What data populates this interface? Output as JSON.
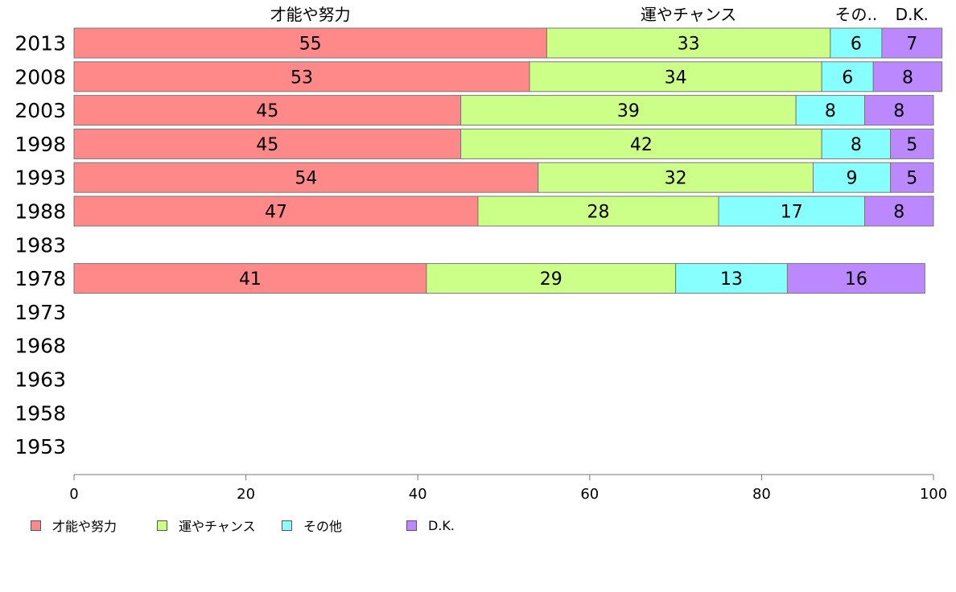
{
  "chart_data": {
    "type": "bar",
    "orientation": "horizontal",
    "stacked": true,
    "categories": [
      "2013",
      "2008",
      "2003",
      "1998",
      "1993",
      "1988",
      "1983",
      "1978",
      "1973",
      "1968",
      "1963",
      "1958",
      "1953"
    ],
    "series": [
      {
        "name": "才能や努力",
        "header": "才能や努力",
        "color": "#FF8888",
        "values": [
          55,
          53,
          45,
          45,
          54,
          47,
          null,
          41,
          null,
          null,
          null,
          null,
          null
        ]
      },
      {
        "name": "運やチャンス",
        "header": "運やチャンス",
        "color": "#CCFF88",
        "values": [
          33,
          34,
          39,
          42,
          32,
          28,
          null,
          29,
          null,
          null,
          null,
          null,
          null
        ]
      },
      {
        "name": "その他",
        "header": "その..",
        "color": "#88FFFF",
        "values": [
          6,
          6,
          8,
          8,
          9,
          17,
          null,
          13,
          null,
          null,
          null,
          null,
          null
        ]
      },
      {
        "name": "D.K.",
        "header": "D.K.",
        "color": "#BB88FF",
        "values": [
          7,
          8,
          8,
          5,
          5,
          8,
          null,
          16,
          null,
          null,
          null,
          null,
          null
        ]
      }
    ],
    "xlim": [
      0,
      100
    ],
    "xticks": [
      0,
      20,
      40,
      60,
      80,
      100
    ],
    "grid": false,
    "legend": "bottom-left"
  }
}
